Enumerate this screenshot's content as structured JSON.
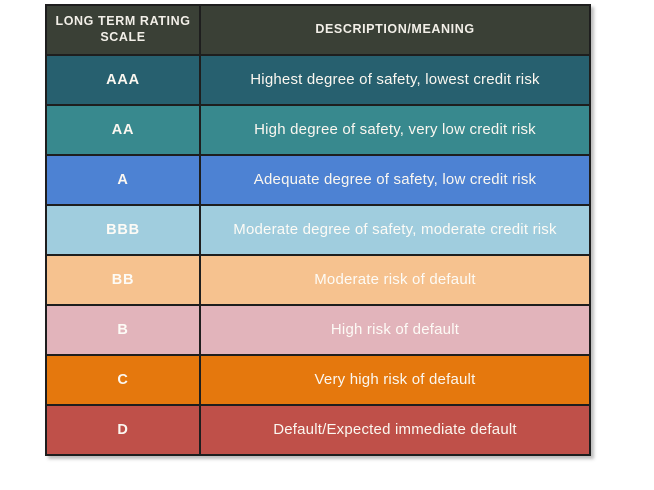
{
  "chart_data": {
    "type": "table",
    "columns": [
      "LONG TERM RATING SCALE",
      "DESCRIPTION/MEANING"
    ],
    "rows": [
      {
        "rating": "AAA",
        "description": "Highest degree of safety, lowest credit risk",
        "bg": "#27606f",
        "text_color": "#fbf7f0"
      },
      {
        "rating": "AA",
        "description": "High degree of safety, very low credit risk",
        "bg": "#38898e",
        "text_color": "#fbf7f0"
      },
      {
        "rating": "A",
        "description": "Adequate degree of safety, low credit risk",
        "bg": "#4d82d3",
        "text_color": "#fbf7f0"
      },
      {
        "rating": "BBB",
        "description": "Moderate degree of safety, moderate credit risk",
        "bg": "#a0cdde",
        "text_color": "#fdfbf6"
      },
      {
        "rating": "BB",
        "description": "Moderate risk of default",
        "bg": "#f6c28f",
        "text_color": "#fdfbf6"
      },
      {
        "rating": "B",
        "description": "High risk of default",
        "bg": "#e2b4bb",
        "text_color": "#fdfbf6"
      },
      {
        "rating": "C",
        "description": "Very high risk of default",
        "bg": "#e5780d",
        "text_color": "#fbf7f0"
      },
      {
        "rating": "D",
        "description": "Default/Expected immediate default",
        "bg": "#bf5049",
        "text_color": "#fbf7f0"
      }
    ],
    "layout": {
      "header_bg": "#3a4036",
      "header_text_color": "#f2efe8",
      "grid_line_color": "#1e1e1e"
    }
  }
}
